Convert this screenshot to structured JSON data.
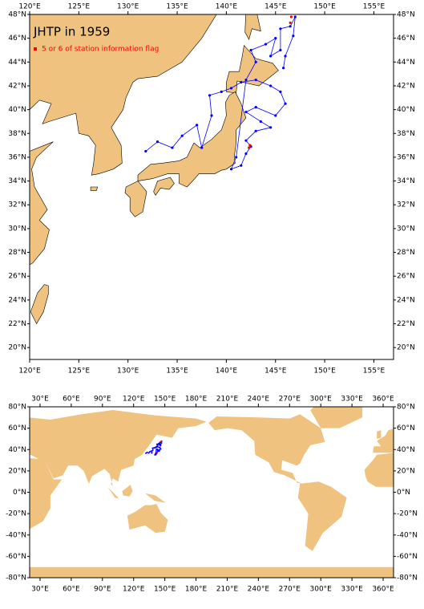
{
  "maps": [
    {
      "title": "JHTP in 1959",
      "legend": "5 or 6 of station information flag",
      "xlim": [
        120,
        157
      ],
      "ylim": [
        19,
        48
      ],
      "xticks": [
        {
          "value": 120,
          "label": "120°E"
        },
        {
          "value": 125,
          "label": "125°E"
        },
        {
          "value": 130,
          "label": "130°E"
        },
        {
          "value": 135,
          "label": "135°E"
        },
        {
          "value": 140,
          "label": "140°E"
        },
        {
          "value": 145,
          "label": "145°E"
        },
        {
          "value": 150,
          "label": "150°E"
        },
        {
          "value": 155,
          "label": "155°E"
        }
      ],
      "yticks": [
        {
          "value": 20,
          "label": "20°N"
        },
        {
          "value": 22,
          "label": "22°N"
        },
        {
          "value": 24,
          "label": "24°N"
        },
        {
          "value": 26,
          "label": "26°N"
        },
        {
          "value": 28,
          "label": "28°N"
        },
        {
          "value": 30,
          "label": "30°N"
        },
        {
          "value": 32,
          "label": "32°N"
        },
        {
          "value": 34,
          "label": "34°N"
        },
        {
          "value": 36,
          "label": "36°N"
        },
        {
          "value": 38,
          "label": "38°N"
        },
        {
          "value": 40,
          "label": "40°N"
        },
        {
          "value": 42,
          "label": "42°N"
        },
        {
          "value": 44,
          "label": "44°N"
        },
        {
          "value": 46,
          "label": "46°N"
        },
        {
          "value": 48,
          "label": "48°N"
        }
      ]
    },
    {
      "xlim": [
        20,
        370
      ],
      "ylim": [
        -80,
        80
      ],
      "xticks": [
        {
          "value": 30,
          "label": "30°E"
        },
        {
          "value": 60,
          "label": "60°E"
        },
        {
          "value": 90,
          "label": "90°E"
        },
        {
          "value": 120,
          "label": "120°E"
        },
        {
          "value": 150,
          "label": "150°E"
        },
        {
          "value": 180,
          "label": "180°E"
        },
        {
          "value": 210,
          "label": "210°E"
        },
        {
          "value": 240,
          "label": "240°E"
        },
        {
          "value": 270,
          "label": "270°E"
        },
        {
          "value": 300,
          "label": "300°E"
        },
        {
          "value": 330,
          "label": "330°E"
        },
        {
          "value": 360,
          "label": "360°E"
        }
      ],
      "yticks": [
        {
          "value": -80,
          "label": "-80°N"
        },
        {
          "value": -60,
          "label": "-60°N"
        },
        {
          "value": -40,
          "label": "-40°N"
        },
        {
          "value": -20,
          "label": "-20°N"
        },
        {
          "value": 0,
          "label": "0°N"
        },
        {
          "value": 20,
          "label": "20°N"
        },
        {
          "value": 40,
          "label": "40°N"
        },
        {
          "value": 60,
          "label": "60°N"
        },
        {
          "value": 80,
          "label": "80°N"
        }
      ]
    }
  ],
  "track": {
    "color": "#0000ff",
    "lon": [
      131.8,
      133,
      134.5,
      135.5,
      137,
      137.5,
      138.5,
      138.3,
      139.5,
      140.5,
      141.5,
      143,
      144.5,
      145.5,
      146,
      145,
      143,
      142,
      143.5,
      144.5,
      143,
      142,
      142.5,
      142,
      141.5,
      140.5,
      141,
      142,
      143,
      142.5,
      144,
      145,
      144.5,
      145.5,
      145.5,
      146.5,
      147,
      146.8,
      146,
      145.8
    ],
    "lat": [
      36.5,
      37.3,
      36.8,
      37.8,
      38.7,
      36.8,
      39.5,
      41.2,
      41.5,
      41.8,
      42.3,
      42.5,
      42,
      41.5,
      40.5,
      39.5,
      40.2,
      39.8,
      39,
      38.5,
      38.2,
      37.4,
      36.9,
      36.3,
      35.3,
      35,
      36,
      42.5,
      44,
      45,
      45.5,
      46,
      44.5,
      45,
      46.8,
      47,
      47.8,
      46.2,
      44.5,
      43.5
    ]
  },
  "flagged": {
    "color": "#ff0000",
    "lon": [
      146.6,
      146.5,
      142.4,
      142.3
    ],
    "lat": [
      47.8,
      47.3,
      37,
      36.8
    ]
  }
}
